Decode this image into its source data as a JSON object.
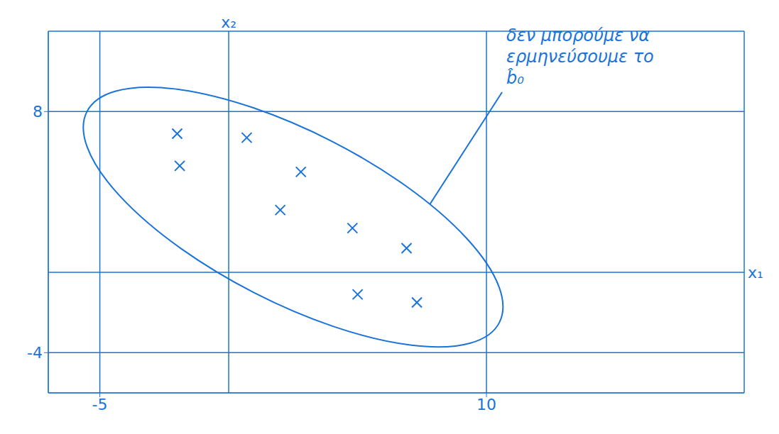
{
  "chart_data": {
    "type": "scatter",
    "x_label": "x₁",
    "y_label": "x₂",
    "x": [
      -2.0,
      0.7,
      -1.9,
      2.8,
      2.0,
      4.8,
      6.9,
      5.0,
      7.3
    ],
    "values": [
      6.9,
      6.7,
      5.3,
      5.0,
      3.1,
      2.2,
      1.2,
      -1.1,
      -1.5
    ],
    "xlim": [
      -7,
      20
    ],
    "ylim": [
      -6,
      12
    ],
    "xticks": [
      -5,
      10
    ],
    "yticks": [
      -4,
      8
    ],
    "grid": true,
    "color": "#1a73d9",
    "marker": "x",
    "annotations": [
      "δεν μπορούμε να ερμηνεύσουμε το b̂₀"
    ]
  }
}
